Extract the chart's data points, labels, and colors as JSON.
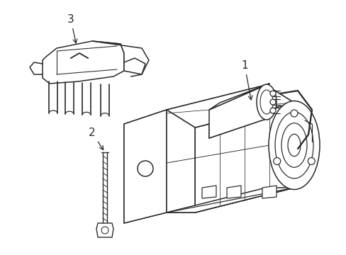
{
  "background_color": "#ffffff",
  "line_color": "#2a2a2a",
  "line_width": 1.1,
  "label_1": "1",
  "label_2": "2",
  "label_3": "3"
}
